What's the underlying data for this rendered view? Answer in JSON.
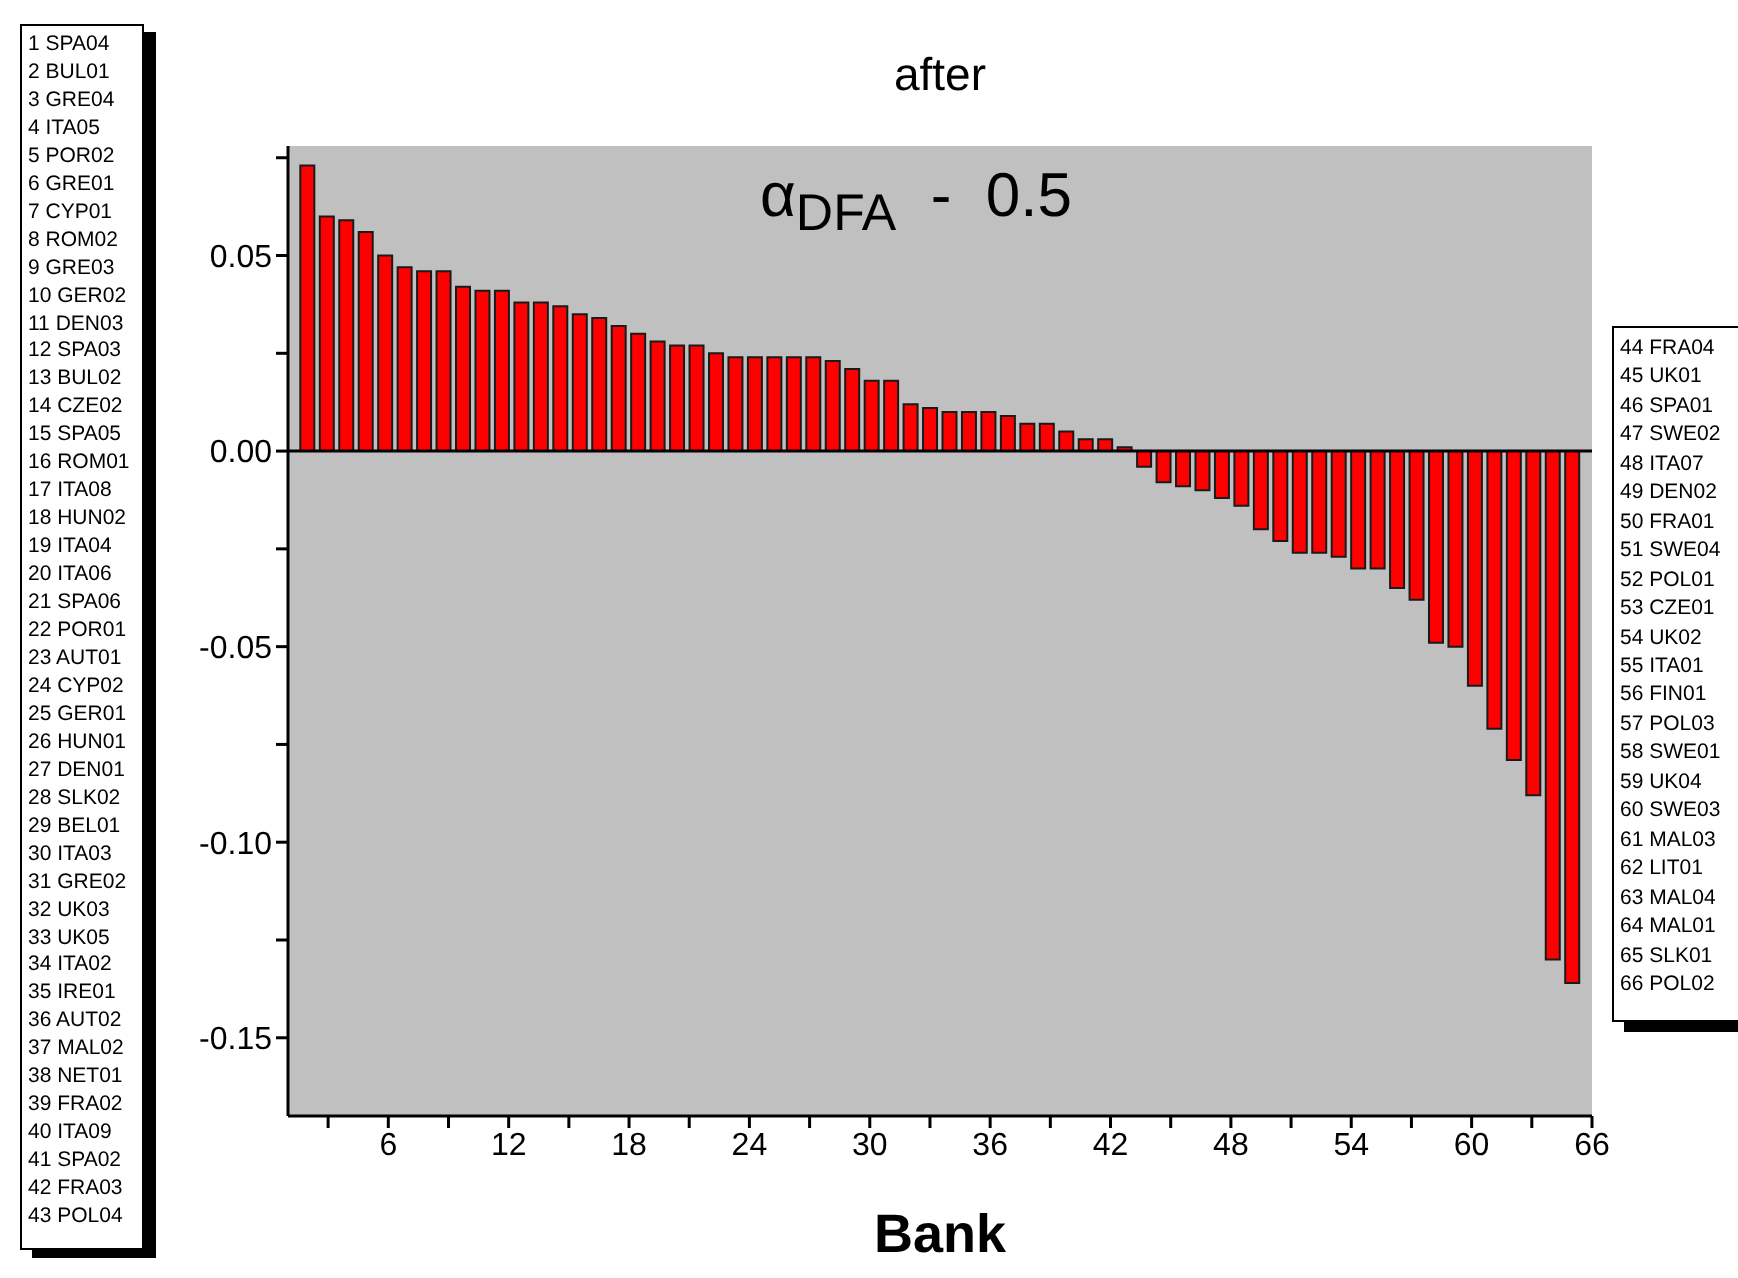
{
  "chart_data": {
    "type": "bar",
    "title": "after",
    "xlabel": "Bank",
    "x": [
      2,
      2.97,
      3.94,
      4.91,
      5.88,
      6.85,
      7.82,
      8.79,
      9.76,
      10.73,
      11.7,
      12.67,
      13.64,
      14.61,
      15.58,
      16.55,
      17.52,
      18.49,
      19.46,
      20.43,
      21.4,
      22.37,
      23.34,
      24.31,
      25.28,
      26.25,
      27.22,
      28.19,
      29.16,
      30.13,
      31.1,
      32.07,
      33.04,
      34.01,
      34.98,
      35.95,
      36.92,
      37.89,
      38.86,
      39.83,
      40.8,
      41.77,
      42.74,
      43.71,
      44.68,
      45.65,
      46.62,
      47.59,
      48.56,
      49.53,
      50.5,
      51.47,
      52.44,
      53.41,
      54.38,
      55.35,
      56.32,
      57.29,
      58.26,
      59.23,
      60.2,
      61.17,
      62.14,
      63.11,
      64.08,
      65.05
    ],
    "values": [
      0.073,
      0.06,
      0.059,
      0.056,
      0.05,
      0.047,
      0.046,
      0.046,
      0.042,
      0.041,
      0.041,
      0.038,
      0.038,
      0.037,
      0.035,
      0.034,
      0.032,
      0.03,
      0.028,
      0.027,
      0.027,
      0.025,
      0.024,
      0.024,
      0.024,
      0.024,
      0.024,
      0.023,
      0.021,
      0.018,
      0.018,
      0.012,
      0.011,
      0.01,
      0.01,
      0.01,
      0.009,
      0.007,
      0.007,
      0.005,
      0.003,
      0.003,
      0.001,
      -0.004,
      -0.008,
      -0.009,
      -0.01,
      -0.012,
      -0.014,
      -0.02,
      -0.023,
      -0.026,
      -0.026,
      -0.027,
      -0.03,
      -0.03,
      -0.035,
      -0.038,
      -0.049,
      -0.05,
      -0.06,
      -0.071,
      -0.079,
      -0.088,
      -0.13,
      -0.136
    ],
    "color": "#ff0000",
    "xlim": [
      1,
      66
    ],
    "xticks": [
      {
        "value": 3,
        "label": null
      },
      6,
      {
        "value": 9,
        "label": null
      },
      12,
      {
        "value": 15,
        "label": null
      },
      18,
      {
        "value": 21,
        "label": null
      },
      24,
      {
        "value": 27,
        "label": null
      },
      30,
      {
        "value": 33,
        "label": null
      },
      36,
      {
        "value": 39,
        "label": null
      },
      42,
      {
        "value": 45,
        "label": null
      },
      48,
      {
        "value": 51,
        "label": null
      },
      54,
      {
        "value": 57,
        "label": null
      },
      60,
      {
        "value": 63,
        "label": null
      },
      66
    ],
    "ylim": [
      -0.17,
      0.078
    ],
    "yticks": [
      {
        "value": -0.15,
        "label": "-0.15"
      },
      {
        "value": -0.125,
        "label": null
      },
      {
        "value": -0.1,
        "label": "-0.10"
      },
      {
        "value": -0.075,
        "label": null
      },
      {
        "value": -0.05,
        "label": "-0.05"
      },
      {
        "value": -0.025,
        "label": null
      },
      {
        "value": 0,
        "label": "0.00"
      },
      {
        "value": 0.025,
        "label": null
      },
      {
        "value": 0.05,
        "label": "0.05"
      },
      {
        "value": 0.075,
        "label": null
      }
    ],
    "ref_lines": [
      {
        "axis": "y",
        "value": 0,
        "color": "#000000"
      }
    ],
    "annotations": [
      "α$_{DFA}$ - 0.5",
      "1 SPA04",
      "2 BUL01",
      "3 GRE04",
      "4 ITA05",
      "5 POR02",
      "6 GRE01",
      "7 CYP01",
      "8 ROM02",
      "9 GRE03",
      "10 GER02",
      "11 DEN03",
      "12 SPA03",
      "13 BUL02",
      "14 CZE02",
      "15 SPA05",
      "16 ROM01",
      "17 ITA08",
      "18 HUN02",
      "19 ITA04",
      "20 ITA06",
      "21 SPA06",
      "22 POR01",
      "23 AUT01",
      "24 CYP02",
      "25 GER01",
      "26 HUN01",
      "27 DEN01",
      "28 SLK02",
      "29 BEL01",
      "30 ITA03",
      "31 GRE02",
      "32 UK03",
      "33 UK05",
      "34 ITA02",
      "35 IRE01",
      "36 AUT02",
      "37 MAL02",
      "38 NET01",
      "39 FRA02",
      "40 ITA09",
      "41 SPA02",
      "42 FRA03",
      "43 POL04",
      "44 FRA04",
      "45 UK01",
      "46 SPA01",
      "47 SWE02",
      "48 ITA07",
      "49 DEN02",
      "50 FRA01",
      "51 SWE04",
      "52 POL01",
      "53 CZE01",
      "54 UK02",
      "55 ITA01",
      "56 FIN01",
      "57 POL03",
      "58 SWE01",
      "59 UK04",
      "60 SWE03",
      "61 MAL03",
      "62 LIT01",
      "63 MAL04",
      "64 MAL01",
      "65 SLK01",
      "66 POL02"
    ]
  }
}
